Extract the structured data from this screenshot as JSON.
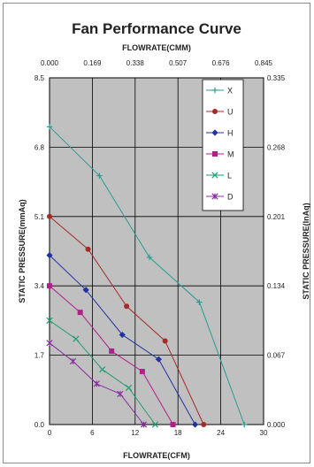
{
  "chart_data": {
    "type": "line",
    "title": "Fan Performance Curve",
    "top_axis_label": "FLOWRATE(CMM)",
    "top_ticks": [
      "0.000",
      "0.169",
      "0.338",
      "0.507",
      "0.676",
      "0.845"
    ],
    "xlabel": "FLOWRATE(CFM)",
    "x_ticks": [
      "0",
      "6",
      "12",
      "18",
      "24",
      "30"
    ],
    "xlim": [
      0,
      30
    ],
    "ylabel": "STATIC PRESSURE(mmAq)",
    "y_ticks": [
      "0.0",
      "1.7",
      "3.4",
      "5.1",
      "6.8",
      "8.5"
    ],
    "ylim": [
      0,
      8.5
    ],
    "right_axis_label": "STATIC PRESSURE(InAq)",
    "right_ticks": [
      "0.000",
      "0.067",
      "0.134",
      "0.201",
      "0.268",
      "0.335"
    ],
    "grid": true,
    "legend_position": "top-right",
    "plot_background": "#c0c0c0",
    "series": [
      {
        "name": "X",
        "color": "#2a9d8f",
        "marker": "plus",
        "x": [
          0,
          7.0,
          14.0,
          21.0,
          27.3
        ],
        "y": [
          7.3,
          6.1,
          4.1,
          3.0,
          0.0
        ]
      },
      {
        "name": "U",
        "color": "#a52a2a",
        "marker": "circle",
        "x": [
          0,
          5.4,
          10.8,
          16.2,
          21.6
        ],
        "y": [
          5.1,
          4.3,
          2.9,
          2.05,
          0.0
        ]
      },
      {
        "name": "H",
        "color": "#2431a3",
        "marker": "diamond",
        "x": [
          0,
          5.1,
          10.2,
          15.3,
          20.4
        ],
        "y": [
          4.15,
          3.3,
          2.2,
          1.6,
          0.0
        ]
      },
      {
        "name": "M",
        "color": "#b0208a",
        "marker": "square",
        "x": [
          0,
          4.3,
          8.7,
          13.0,
          17.3
        ],
        "y": [
          3.4,
          2.75,
          1.8,
          1.3,
          0.0
        ]
      },
      {
        "name": "L",
        "color": "#1f9e6e",
        "marker": "x",
        "x": [
          0,
          3.7,
          7.4,
          11.1,
          14.8
        ],
        "y": [
          2.55,
          2.1,
          1.35,
          0.9,
          0.0
        ]
      },
      {
        "name": "D",
        "color": "#8a2fa0",
        "marker": "star",
        "x": [
          0,
          3.3,
          6.6,
          9.9,
          13.2
        ],
        "y": [
          2.0,
          1.55,
          1.0,
          0.75,
          0.0
        ]
      }
    ]
  }
}
